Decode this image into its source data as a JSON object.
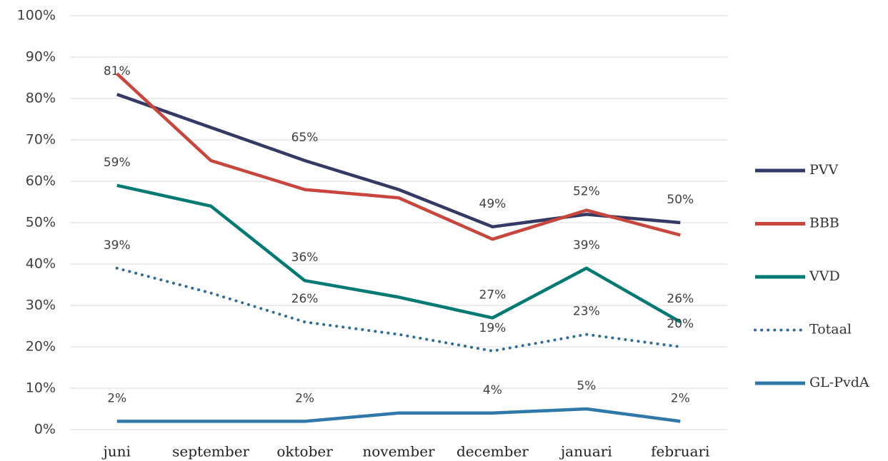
{
  "chart_data": {
    "type": "line",
    "categories": [
      "juni",
      "september",
      "oktober",
      "november",
      "december",
      "januari",
      "februari"
    ],
    "ylim": [
      0,
      100
    ],
    "yticks": [
      {
        "value": 0,
        "label": "0%"
      },
      {
        "value": 10,
        "label": "10%"
      },
      {
        "value": 20,
        "label": "20%"
      },
      {
        "value": 30,
        "label": "30%"
      },
      {
        "value": 40,
        "label": "40%"
      },
      {
        "value": 50,
        "label": "50%"
      },
      {
        "value": 60,
        "label": "60%"
      },
      {
        "value": 70,
        "label": "70%"
      },
      {
        "value": 80,
        "label": "80%"
      },
      {
        "value": 90,
        "label": "90%"
      },
      {
        "value": 100,
        "label": "100%"
      }
    ],
    "grid": true,
    "legend": "right",
    "series": [
      {
        "name": "PVV",
        "color": "#353a64",
        "values": [
          81,
          73,
          65,
          58,
          49,
          52,
          50
        ],
        "value_labels": [
          "81%",
          null,
          "65%",
          null,
          "49%",
          "52%",
          "50%"
        ]
      },
      {
        "name": "BBB",
        "color": "#c9463d",
        "values": [
          86,
          65,
          58,
          56,
          46,
          53,
          47
        ]
      },
      {
        "name": "VVD",
        "color": "#007a73",
        "values": [
          59,
          54,
          36,
          32,
          27,
          39,
          26
        ],
        "value_labels": [
          "59%",
          null,
          "36%",
          null,
          "27%",
          "39%",
          "26%"
        ]
      },
      {
        "name": "Totaal",
        "color": "#2e6c9a",
        "dashed": true,
        "values": [
          39,
          33,
          26,
          23,
          19,
          23,
          20
        ],
        "value_labels": [
          "39%",
          null,
          "26%",
          null,
          "19%",
          "23%",
          "20%"
        ]
      },
      {
        "name": "GL-PvdA",
        "color": "#2e78aa",
        "values": [
          2,
          2,
          2,
          4,
          4,
          5,
          2
        ],
        "value_labels": [
          "2%",
          null,
          "2%",
          null,
          "4%",
          "5%",
          "2%"
        ]
      }
    ]
  }
}
